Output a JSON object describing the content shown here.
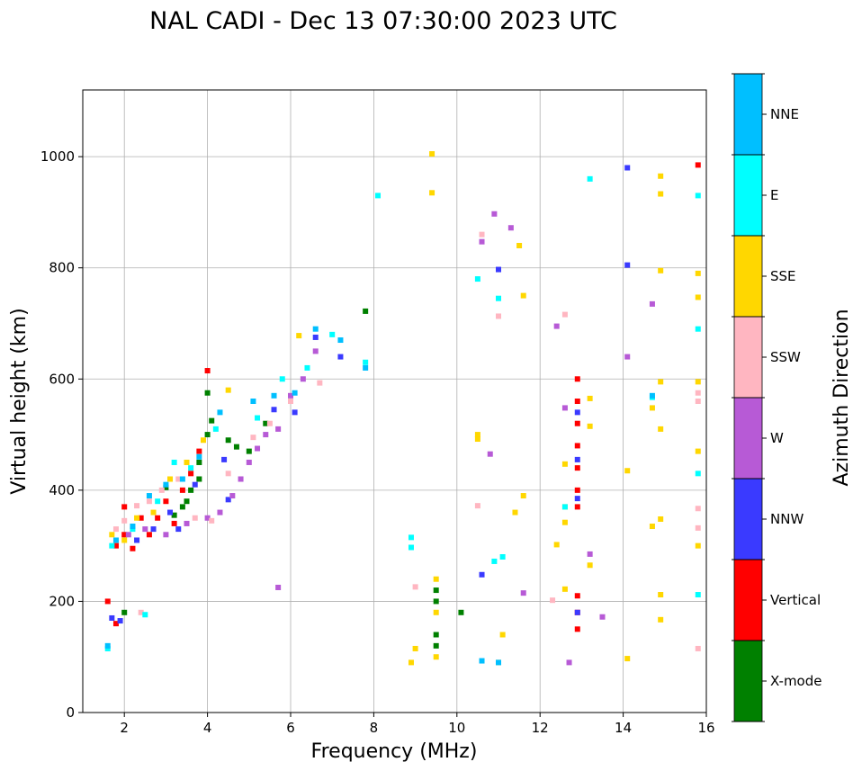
{
  "chart_data": {
    "type": "scatter",
    "title": "NAL CADI - Dec 13 07:30:00 2023 UTC",
    "xlabel": "Frequency (MHz)",
    "ylabel": "Virtual height (km)",
    "xlim": [
      1,
      16
    ],
    "ylim": [
      0,
      1120
    ],
    "xticks": [
      2,
      4,
      6,
      8,
      10,
      12,
      14,
      16
    ],
    "yticks": [
      0,
      200,
      400,
      600,
      800,
      1000
    ],
    "grid": true,
    "colorbar": {
      "label": "Azimuth Direction",
      "categories": [
        {
          "name": "X-mode",
          "color": "#008000"
        },
        {
          "name": "Vertical",
          "color": "#ff0000"
        },
        {
          "name": "NNW",
          "color": "#3a3aff"
        },
        {
          "name": "W",
          "color": "#b75ad6"
        },
        {
          "name": "SSW",
          "color": "#ffb6c1"
        },
        {
          "name": "SSE",
          "color": "#ffd700"
        },
        {
          "name": "E",
          "color": "#00ffff"
        },
        {
          "name": "NNE",
          "color": "#00bfff"
        }
      ]
    },
    "series": [
      {
        "name": "X-mode",
        "points": [
          [
            3.4,
            370
          ],
          [
            3.6,
            400
          ],
          [
            3.8,
            450
          ],
          [
            4.0,
            500
          ],
          [
            4.0,
            575
          ],
          [
            3.8,
            420
          ],
          [
            4.5,
            490
          ],
          [
            5.4,
            520
          ],
          [
            5.0,
            470
          ],
          [
            3.2,
            355
          ],
          [
            3.5,
            380
          ],
          [
            4.1,
            525
          ],
          [
            9.5,
            220
          ],
          [
            9.5,
            200
          ],
          [
            9.5,
            140
          ],
          [
            9.5,
            120
          ],
          [
            10.1,
            180
          ],
          [
            2.0,
            180
          ],
          [
            3.0,
            405
          ],
          [
            4.7,
            478
          ],
          [
            7.8,
            722
          ]
        ]
      },
      {
        "name": "Vertical",
        "points": [
          [
            1.8,
            300
          ],
          [
            2.0,
            320
          ],
          [
            2.2,
            295
          ],
          [
            2.4,
            350
          ],
          [
            2.6,
            320
          ],
          [
            2.8,
            350
          ],
          [
            3.0,
            380
          ],
          [
            3.2,
            340
          ],
          [
            3.4,
            400
          ],
          [
            3.6,
            430
          ],
          [
            2.0,
            370
          ],
          [
            1.6,
            200
          ],
          [
            1.8,
            160
          ],
          [
            3.8,
            470
          ],
          [
            4.0,
            615
          ],
          [
            12.9,
            600
          ],
          [
            12.9,
            560
          ],
          [
            12.9,
            520
          ],
          [
            12.9,
            480
          ],
          [
            12.9,
            440
          ],
          [
            12.9,
            400
          ],
          [
            12.9,
            370
          ],
          [
            12.9,
            210
          ],
          [
            12.9,
            180
          ],
          [
            12.9,
            150
          ],
          [
            15.8,
            985
          ]
        ]
      },
      {
        "name": "NNW",
        "points": [
          [
            1.7,
            170
          ],
          [
            1.9,
            165
          ],
          [
            2.3,
            310
          ],
          [
            2.7,
            330
          ],
          [
            3.1,
            360
          ],
          [
            3.3,
            330
          ],
          [
            3.7,
            410
          ],
          [
            4.4,
            455
          ],
          [
            4.5,
            383
          ],
          [
            5.6,
            545
          ],
          [
            6.1,
            540
          ],
          [
            6.6,
            675
          ],
          [
            7.2,
            640
          ],
          [
            10.6,
            248
          ],
          [
            11.0,
            797
          ],
          [
            12.9,
            540
          ],
          [
            12.9,
            455
          ],
          [
            12.9,
            385
          ],
          [
            12.9,
            180
          ],
          [
            14.1,
            980
          ],
          [
            14.1,
            805
          ]
        ]
      },
      {
        "name": "W",
        "points": [
          [
            2.1,
            320
          ],
          [
            2.5,
            330
          ],
          [
            3.0,
            320
          ],
          [
            3.5,
            340
          ],
          [
            4.0,
            350
          ],
          [
            4.3,
            360
          ],
          [
            4.6,
            390
          ],
          [
            4.8,
            420
          ],
          [
            5.0,
            450
          ],
          [
            5.2,
            475
          ],
          [
            5.4,
            500
          ],
          [
            5.7,
            510
          ],
          [
            6.0,
            570
          ],
          [
            6.3,
            600
          ],
          [
            6.6,
            650
          ],
          [
            5.7,
            225
          ],
          [
            10.8,
            465
          ],
          [
            10.9,
            897
          ],
          [
            11.3,
            872
          ],
          [
            11.6,
            215
          ],
          [
            12.4,
            695
          ],
          [
            12.6,
            548
          ],
          [
            13.2,
            285
          ],
          [
            13.5,
            172
          ],
          [
            14.1,
            640
          ],
          [
            14.7,
            735
          ],
          [
            12.7,
            90
          ],
          [
            10.6,
            847
          ]
        ]
      },
      {
        "name": "SSW",
        "points": [
          [
            1.8,
            330
          ],
          [
            2.0,
            345
          ],
          [
            2.3,
            372
          ],
          [
            2.6,
            380
          ],
          [
            2.9,
            400
          ],
          [
            3.3,
            420
          ],
          [
            3.7,
            350
          ],
          [
            4.1,
            345
          ],
          [
            4.5,
            430
          ],
          [
            5.1,
            495
          ],
          [
            5.5,
            520
          ],
          [
            6.0,
            560
          ],
          [
            6.7,
            593
          ],
          [
            9.0,
            226
          ],
          [
            10.5,
            372
          ],
          [
            10.6,
            860
          ],
          [
            11.0,
            713
          ],
          [
            12.6,
            716
          ],
          [
            12.3,
            202
          ],
          [
            15.8,
            575
          ],
          [
            15.8,
            560
          ],
          [
            15.8,
            367
          ],
          [
            15.8,
            332
          ],
          [
            15.8,
            115
          ],
          [
            2.4,
            180
          ]
        ]
      },
      {
        "name": "SSE",
        "points": [
          [
            1.7,
            320
          ],
          [
            2.0,
            310
          ],
          [
            2.3,
            350
          ],
          [
            2.7,
            360
          ],
          [
            3.1,
            420
          ],
          [
            3.5,
            450
          ],
          [
            3.9,
            490
          ],
          [
            4.5,
            580
          ],
          [
            9.5,
            240
          ],
          [
            9.5,
            180
          ],
          [
            9.5,
            100
          ],
          [
            9.4,
            1005
          ],
          [
            9.4,
            935
          ],
          [
            8.9,
            90
          ],
          [
            9.0,
            115
          ],
          [
            10.5,
            500
          ],
          [
            10.5,
            492
          ],
          [
            11.0,
            90
          ],
          [
            11.1,
            140
          ],
          [
            11.4,
            360
          ],
          [
            11.5,
            840
          ],
          [
            11.6,
            750
          ],
          [
            11.6,
            390
          ],
          [
            12.4,
            302
          ],
          [
            12.6,
            370
          ],
          [
            12.6,
            342
          ],
          [
            12.6,
            222
          ],
          [
            12.6,
            447
          ],
          [
            13.2,
            565
          ],
          [
            13.2,
            515
          ],
          [
            13.2,
            265
          ],
          [
            14.1,
            435
          ],
          [
            14.1,
            97
          ],
          [
            14.7,
            548
          ],
          [
            14.7,
            335
          ],
          [
            14.9,
            965
          ],
          [
            14.9,
            933
          ],
          [
            14.9,
            795
          ],
          [
            14.9,
            595
          ],
          [
            14.9,
            510
          ],
          [
            14.9,
            348
          ],
          [
            14.9,
            212
          ],
          [
            14.9,
            167
          ],
          [
            15.8,
            790
          ],
          [
            15.8,
            747
          ],
          [
            15.8,
            595
          ],
          [
            15.8,
            470
          ],
          [
            15.8,
            300
          ],
          [
            6.2,
            678
          ]
        ]
      },
      {
        "name": "E",
        "points": [
          [
            1.6,
            115
          ],
          [
            1.7,
            300
          ],
          [
            2.2,
            330
          ],
          [
            2.8,
            380
          ],
          [
            3.2,
            450
          ],
          [
            3.6,
            440
          ],
          [
            4.2,
            510
          ],
          [
            5.2,
            530
          ],
          [
            5.8,
            600
          ],
          [
            6.4,
            620
          ],
          [
            7.0,
            680
          ],
          [
            7.8,
            630
          ],
          [
            8.1,
            930
          ],
          [
            8.9,
            315
          ],
          [
            8.9,
            297
          ],
          [
            10.5,
            780
          ],
          [
            10.9,
            272
          ],
          [
            11.1,
            280
          ],
          [
            11.0,
            745
          ],
          [
            12.6,
            370
          ],
          [
            13.2,
            960
          ],
          [
            14.7,
            567
          ],
          [
            15.8,
            930
          ],
          [
            15.8,
            690
          ],
          [
            15.8,
            430
          ],
          [
            15.8,
            212
          ],
          [
            2.5,
            176
          ]
        ]
      },
      {
        "name": "NNE",
        "points": [
          [
            1.6,
            120
          ],
          [
            1.8,
            310
          ],
          [
            2.2,
            335
          ],
          [
            2.6,
            390
          ],
          [
            3.0,
            410
          ],
          [
            3.4,
            420
          ],
          [
            3.8,
            460
          ],
          [
            4.3,
            540
          ],
          [
            5.1,
            560
          ],
          [
            5.6,
            570
          ],
          [
            6.1,
            575
          ],
          [
            6.6,
            690
          ],
          [
            7.2,
            670
          ],
          [
            7.8,
            620
          ],
          [
            10.6,
            93
          ],
          [
            11.0,
            90
          ],
          [
            14.7,
            570
          ]
        ]
      }
    ]
  }
}
